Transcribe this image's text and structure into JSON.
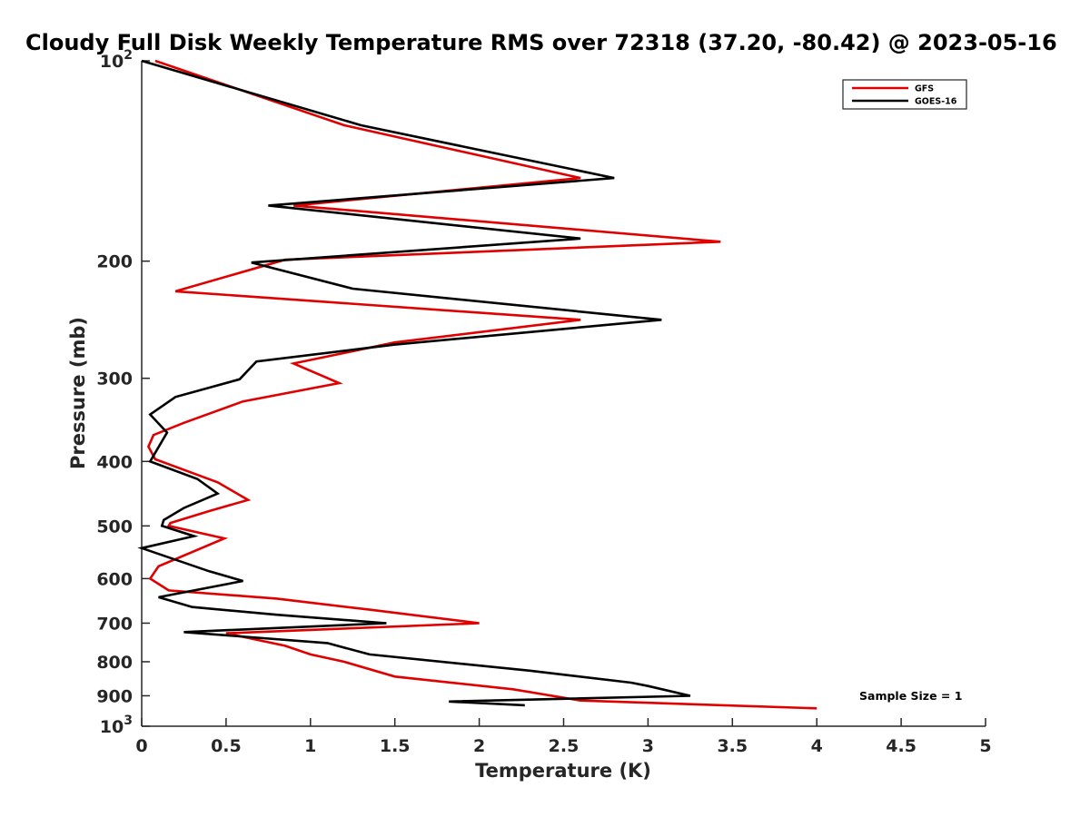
{
  "chart_data": {
    "type": "line",
    "title": "Cloudy Full Disk Weekly Temperature RMS over 72318 (37.20, -80.42) @ 2023-05-1…",
    "title_display": "Cloudy Full Disk Weekly Temperature RMS over 72318 (37.20, -80.42) @ 2023-05-16",
    "xlabel": "Temperature (K)",
    "ylabel": "Pressure (mb)",
    "xlim": [
      0,
      5
    ],
    "ylim": [
      100,
      1000
    ],
    "y_scale": "log",
    "y_reversed": true,
    "grid": false,
    "legend_position": "top-right",
    "annotation": "Sample Size = 1",
    "x_ticks": [
      {
        "value": 0,
        "label": "0"
      },
      {
        "value": 0.5,
        "label": "0.5"
      },
      {
        "value": 1,
        "label": "1"
      },
      {
        "value": 1.5,
        "label": "1.5"
      },
      {
        "value": 2,
        "label": "2"
      },
      {
        "value": 2.5,
        "label": "2.5"
      },
      {
        "value": 3,
        "label": "3"
      },
      {
        "value": 3.5,
        "label": "3.5"
      },
      {
        "value": 4,
        "label": "4"
      },
      {
        "value": 4.5,
        "label": "4.5"
      },
      {
        "value": 5,
        "label": "5"
      }
    ],
    "y_ticks": [
      {
        "value": 100,
        "base": "10",
        "exp": "2"
      },
      {
        "value": 200,
        "base": "200",
        "exp": ""
      },
      {
        "value": 300,
        "base": "300",
        "exp": ""
      },
      {
        "value": 400,
        "base": "400",
        "exp": ""
      },
      {
        "value": 500,
        "base": "500",
        "exp": ""
      },
      {
        "value": 600,
        "base": "600",
        "exp": ""
      },
      {
        "value": 700,
        "base": "700",
        "exp": ""
      },
      {
        "value": 800,
        "base": "800",
        "exp": ""
      },
      {
        "value": 900,
        "base": "900",
        "exp": ""
      },
      {
        "value": 1000,
        "base": "10",
        "exp": "3"
      }
    ],
    "series": [
      {
        "name": "GFS",
        "color": "#e00000",
        "points": [
          [
            0.08,
            100
          ],
          [
            1.2,
            125
          ],
          [
            2.6,
            150
          ],
          [
            0.9,
            165
          ],
          [
            3.43,
            187
          ],
          [
            0.85,
            199
          ],
          [
            0.2,
            222
          ],
          [
            2.6,
            245
          ],
          [
            1.5,
            265
          ],
          [
            0.9,
            285
          ],
          [
            1.17,
            305
          ],
          [
            0.6,
            325
          ],
          [
            0.25,
            350
          ],
          [
            0.07,
            365
          ],
          [
            0.04,
            380
          ],
          [
            0.08,
            397
          ],
          [
            0.45,
            430
          ],
          [
            0.63,
            457
          ],
          [
            0.4,
            475
          ],
          [
            0.17,
            495
          ],
          [
            0.16,
            500
          ],
          [
            0.49,
            522
          ],
          [
            0.1,
            575
          ],
          [
            0.05,
            600
          ],
          [
            0.16,
            625
          ],
          [
            0.8,
            643
          ],
          [
            1.35,
            668
          ],
          [
            2.0,
            700
          ],
          [
            0.5,
            725
          ],
          [
            0.85,
            757
          ],
          [
            1.0,
            780
          ],
          [
            1.2,
            800
          ],
          [
            1.5,
            842
          ],
          [
            2.2,
            880
          ],
          [
            2.6,
            915
          ],
          [
            4.0,
            940
          ]
        ]
      },
      {
        "name": "GOES-16",
        "color": "#000000",
        "points": [
          [
            0.0,
            100
          ],
          [
            1.3,
            125
          ],
          [
            2.8,
            150
          ],
          [
            0.75,
            165
          ],
          [
            2.6,
            185
          ],
          [
            0.65,
            201
          ],
          [
            1.25,
            220
          ],
          [
            3.08,
            245
          ],
          [
            1.5,
            267
          ],
          [
            0.68,
            283
          ],
          [
            0.58,
            301
          ],
          [
            0.2,
            320
          ],
          [
            0.05,
            340
          ],
          [
            0.15,
            362
          ],
          [
            0.05,
            400
          ],
          [
            0.33,
            425
          ],
          [
            0.45,
            447
          ],
          [
            0.25,
            470
          ],
          [
            0.13,
            490
          ],
          [
            0.12,
            500
          ],
          [
            0.31,
            518
          ],
          [
            0.0,
            540
          ],
          [
            0.4,
            585
          ],
          [
            0.6,
            605
          ],
          [
            0.1,
            640
          ],
          [
            0.3,
            662
          ],
          [
            0.8,
            680
          ],
          [
            1.45,
            700
          ],
          [
            0.25,
            722
          ],
          [
            1.1,
            750
          ],
          [
            1.35,
            780
          ],
          [
            2.3,
            825
          ],
          [
            2.9,
            860
          ],
          [
            3.0,
            870
          ],
          [
            3.25,
            900
          ],
          [
            1.82,
            918
          ],
          [
            2.27,
            930
          ]
        ]
      }
    ]
  }
}
